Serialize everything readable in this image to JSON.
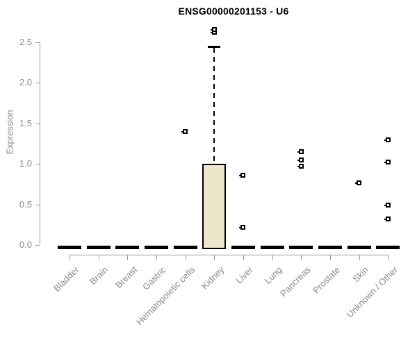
{
  "chart_data": {
    "type": "boxplot",
    "title": "ENSG00000201153 - U6",
    "ylabel": "Expression",
    "xlabel": "",
    "ylim": [
      0,
      2.7
    ],
    "yticks": [
      0,
      0.5,
      1.0,
      1.5,
      2.0,
      2.5
    ],
    "ytick_labels": [
      "0.0",
      "0.5",
      "1.0",
      "1.5",
      "2.0",
      "2.5"
    ],
    "grid": false,
    "legend": "none",
    "categories": [
      "Bladder",
      "Brain",
      "Breast",
      "Gastric",
      "Hematopoietic cells",
      "Kidney",
      "Liver",
      "Lung",
      "Pancreas",
      "Prostate",
      "Skin",
      "Unknown / Other"
    ],
    "boxes": [
      {
        "category": "Bladder",
        "whisker_low": 0,
        "q1": 0,
        "median": 0,
        "q3": 0,
        "whisker_high": 0,
        "outliers": []
      },
      {
        "category": "Brain",
        "whisker_low": 0,
        "q1": 0,
        "median": 0,
        "q3": 0,
        "whisker_high": 0,
        "outliers": []
      },
      {
        "category": "Breast",
        "whisker_low": 0,
        "q1": 0,
        "median": 0,
        "q3": 0,
        "whisker_high": 0,
        "outliers": []
      },
      {
        "category": "Gastric",
        "whisker_low": 0,
        "q1": 0,
        "median": 0,
        "q3": 0,
        "whisker_high": 0,
        "outliers": []
      },
      {
        "category": "Hematopoietic cells",
        "whisker_low": 0,
        "q1": 0,
        "median": 0,
        "q3": 0,
        "whisker_high": 0,
        "outliers": [
          1.4
        ]
      },
      {
        "category": "Kidney",
        "whisker_low": 0,
        "q1": 0,
        "median": 0,
        "q3": 1.0,
        "whisker_high": 2.45,
        "outliers": [
          2.62,
          2.66
        ]
      },
      {
        "category": "Liver",
        "whisker_low": 0,
        "q1": 0,
        "median": 0,
        "q3": 0,
        "whisker_high": 0,
        "outliers": [
          0.22,
          0.86
        ]
      },
      {
        "category": "Lung",
        "whisker_low": 0,
        "q1": 0,
        "median": 0,
        "q3": 0,
        "whisker_high": 0,
        "outliers": []
      },
      {
        "category": "Pancreas",
        "whisker_low": 0,
        "q1": 0,
        "median": 0,
        "q3": 0,
        "whisker_high": 0,
        "outliers": [
          0.97,
          1.05,
          1.15
        ]
      },
      {
        "category": "Prostate",
        "whisker_low": 0,
        "q1": 0,
        "median": 0,
        "q3": 0,
        "whisker_high": 0,
        "outliers": []
      },
      {
        "category": "Skin",
        "whisker_low": 0,
        "q1": 0,
        "median": 0,
        "q3": 0,
        "whisker_high": 0,
        "outliers": [
          0.77
        ]
      },
      {
        "category": "Unknown / Other",
        "whisker_low": 0,
        "q1": 0,
        "median": 0,
        "q3": 0,
        "whisker_high": 0,
        "outliers": [
          0.32,
          0.49,
          1.02,
          1.3
        ]
      }
    ],
    "colors": {
      "background": "#ffffff",
      "title": "#000000",
      "axis": "#9a9a9a",
      "ytick_label": "#848b93",
      "category_label": "#8a8a8a",
      "box_fill": "#ece7cb",
      "box_border": "#000000",
      "outlier_marker": "#000000"
    }
  }
}
